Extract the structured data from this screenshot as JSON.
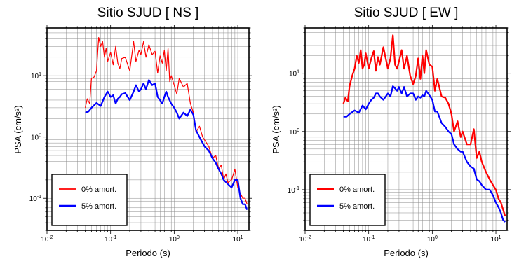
{
  "chart_data": [
    {
      "type": "line",
      "title": "Sitio SJUD [ NS ]",
      "xlabel": "Periodo (s)",
      "ylabel": "PSA (cm/s²)",
      "xscale": "log",
      "yscale": "log",
      "xlim": [
        0.01,
        15
      ],
      "ylim": [
        0.03,
        60
      ],
      "x_ticks": [
        "10^-2",
        "10^-1",
        "10^0",
        "10^1"
      ],
      "y_ticks": [
        "10^-1",
        "10^0",
        "10^1"
      ],
      "grid": true,
      "legend_position": "bottom-left",
      "series": [
        {
          "name": "0% amort.",
          "color": "#ff0000",
          "x": [
            0.04,
            0.043,
            0.047,
            0.05,
            0.055,
            0.06,
            0.065,
            0.07,
            0.075,
            0.08,
            0.085,
            0.09,
            0.1,
            0.11,
            0.12,
            0.13,
            0.14,
            0.15,
            0.17,
            0.2,
            0.23,
            0.25,
            0.28,
            0.3,
            0.33,
            0.36,
            0.4,
            0.45,
            0.5,
            0.55,
            0.6,
            0.65,
            0.7,
            0.75,
            0.8,
            0.85,
            0.9,
            1.0,
            1.1,
            1.2,
            1.4,
            1.6,
            1.8,
            2.0,
            2.2,
            2.5,
            2.8,
            3.0,
            3.5,
            4.0,
            4.5,
            5.0,
            5.5,
            6.0,
            6.5,
            7.0,
            8.0,
            9.0,
            10.0,
            11.0,
            12.0,
            13.0,
            14.0
          ],
          "y": [
            3.0,
            4.2,
            3.5,
            9.0,
            9.5,
            12.0,
            42.0,
            30.0,
            36.0,
            20.0,
            28.0,
            17.0,
            24.0,
            15.0,
            30.0,
            16.0,
            13.0,
            19.0,
            20.0,
            12.0,
            36.0,
            17.0,
            26.0,
            22.0,
            36.0,
            20.0,
            32.0,
            22.0,
            25.0,
            11.0,
            21.0,
            16.0,
            26.0,
            12.0,
            28.0,
            8.0,
            10.0,
            7.0,
            5.0,
            9.0,
            6.5,
            7.5,
            3.5,
            2.5,
            1.2,
            1.5,
            1.0,
            0.9,
            0.7,
            0.45,
            0.5,
            0.3,
            0.35,
            0.2,
            0.25,
            0.18,
            0.2,
            0.3,
            0.15,
            0.12,
            0.1,
            0.1,
            0.08
          ]
        },
        {
          "name": "5% amort.",
          "color": "#0000ff",
          "x": [
            0.04,
            0.045,
            0.05,
            0.06,
            0.07,
            0.08,
            0.09,
            0.1,
            0.11,
            0.12,
            0.13,
            0.14,
            0.15,
            0.17,
            0.2,
            0.23,
            0.25,
            0.28,
            0.3,
            0.33,
            0.36,
            0.4,
            0.45,
            0.5,
            0.55,
            0.6,
            0.65,
            0.7,
            0.75,
            0.8,
            0.9,
            1.0,
            1.1,
            1.2,
            1.4,
            1.6,
            1.8,
            2.0,
            2.2,
            2.5,
            2.8,
            3.0,
            3.5,
            4.0,
            4.5,
            5.0,
            5.5,
            6.0,
            7.0,
            8.0,
            9.0,
            10.0,
            11.0,
            12.0,
            13.0,
            14.0
          ],
          "y": [
            2.5,
            2.6,
            3.0,
            3.6,
            3.2,
            4.5,
            5.5,
            4.5,
            4.8,
            3.5,
            4.2,
            4.5,
            5.0,
            5.2,
            4.0,
            5.5,
            7.0,
            5.5,
            6.0,
            7.5,
            6.0,
            8.5,
            7.0,
            7.5,
            4.5,
            4.0,
            3.5,
            4.5,
            5.5,
            4.5,
            3.5,
            3.0,
            2.5,
            2.0,
            2.5,
            2.2,
            2.8,
            2.3,
            1.3,
            1.0,
            0.8,
            0.7,
            0.6,
            0.45,
            0.38,
            0.3,
            0.25,
            0.2,
            0.17,
            0.15,
            0.2,
            0.2,
            0.1,
            0.08,
            0.08,
            0.065
          ]
        }
      ]
    },
    {
      "type": "line",
      "title": "Sitio SJUD [ EW ]",
      "xlabel": "Periodo (s)",
      "ylabel": "PSA (cm/s²)",
      "xscale": "log",
      "yscale": "log",
      "xlim": [
        0.01,
        15
      ],
      "ylim": [
        0.02,
        60
      ],
      "x_ticks": [
        "10^-2",
        "10^-1",
        "10^0",
        "10^1"
      ],
      "y_ticks": [
        "10^-1",
        "10^0",
        "10^1"
      ],
      "grid": true,
      "legend_position": "bottom-left",
      "series": [
        {
          "name": "0% amort.",
          "color": "#ff0000",
          "x": [
            0.04,
            0.043,
            0.047,
            0.05,
            0.055,
            0.06,
            0.065,
            0.07,
            0.075,
            0.08,
            0.085,
            0.09,
            0.1,
            0.11,
            0.12,
            0.13,
            0.14,
            0.15,
            0.17,
            0.2,
            0.22,
            0.24,
            0.26,
            0.28,
            0.3,
            0.33,
            0.36,
            0.4,
            0.45,
            0.5,
            0.55,
            0.6,
            0.65,
            0.7,
            0.75,
            0.8,
            0.9,
            1.0,
            1.1,
            1.2,
            1.4,
            1.6,
            1.8,
            2.0,
            2.2,
            2.5,
            2.8,
            3.0,
            3.5,
            4.0,
            4.5,
            5.0,
            5.5,
            6.0,
            7.0,
            8.0,
            9.0,
            10.0,
            11.0,
            12.0,
            13.0,
            14.0
          ],
          "y": [
            3.0,
            3.8,
            3.3,
            6.0,
            9.0,
            12.0,
            20.0,
            15.0,
            25.0,
            12.0,
            14.0,
            22.0,
            12.0,
            18.0,
            24.0,
            11.0,
            19.0,
            14.0,
            28.0,
            12.0,
            18.0,
            45.0,
            14.0,
            12.0,
            16.0,
            25.0,
            12.0,
            20.0,
            9.0,
            6.5,
            9.0,
            18.0,
            8.0,
            20.0,
            10.0,
            25.0,
            14.0,
            13.0,
            5.0,
            8.0,
            4.0,
            3.8,
            3.0,
            2.0,
            1.0,
            1.5,
            0.8,
            1.0,
            0.6,
            0.6,
            1.1,
            0.35,
            0.45,
            0.3,
            0.2,
            0.15,
            0.12,
            0.1,
            0.07,
            0.06,
            0.045,
            0.035
          ]
        },
        {
          "name": "5% amort.",
          "color": "#0000ff",
          "x": [
            0.04,
            0.045,
            0.05,
            0.06,
            0.07,
            0.08,
            0.09,
            0.1,
            0.11,
            0.12,
            0.13,
            0.14,
            0.15,
            0.17,
            0.2,
            0.22,
            0.24,
            0.26,
            0.28,
            0.3,
            0.33,
            0.36,
            0.4,
            0.45,
            0.5,
            0.55,
            0.6,
            0.65,
            0.7,
            0.75,
            0.8,
            0.9,
            1.0,
            1.1,
            1.2,
            1.4,
            1.6,
            1.8,
            2.0,
            2.2,
            2.5,
            2.8,
            3.0,
            3.5,
            4.0,
            4.5,
            5.0,
            5.5,
            6.0,
            7.0,
            8.0,
            9.0,
            10.0,
            11.0,
            12.0,
            13.0,
            14.0
          ],
          "y": [
            1.8,
            1.8,
            2.0,
            2.3,
            2.1,
            2.8,
            2.4,
            3.0,
            3.5,
            3.8,
            4.5,
            4.5,
            4.0,
            3.5,
            4.5,
            4.0,
            6.0,
            5.5,
            5.0,
            5.8,
            4.5,
            5.8,
            4.0,
            4.5,
            4.5,
            3.5,
            4.0,
            3.8,
            4.2,
            4.0,
            5.0,
            4.2,
            3.5,
            2.2,
            2.2,
            1.4,
            1.2,
            1.0,
            0.9,
            0.6,
            0.5,
            0.45,
            0.45,
            0.3,
            0.25,
            0.23,
            0.15,
            0.14,
            0.12,
            0.1,
            0.1,
            0.08,
            0.06,
            0.05,
            0.04,
            0.03,
            0.028
          ]
        }
      ]
    }
  ]
}
